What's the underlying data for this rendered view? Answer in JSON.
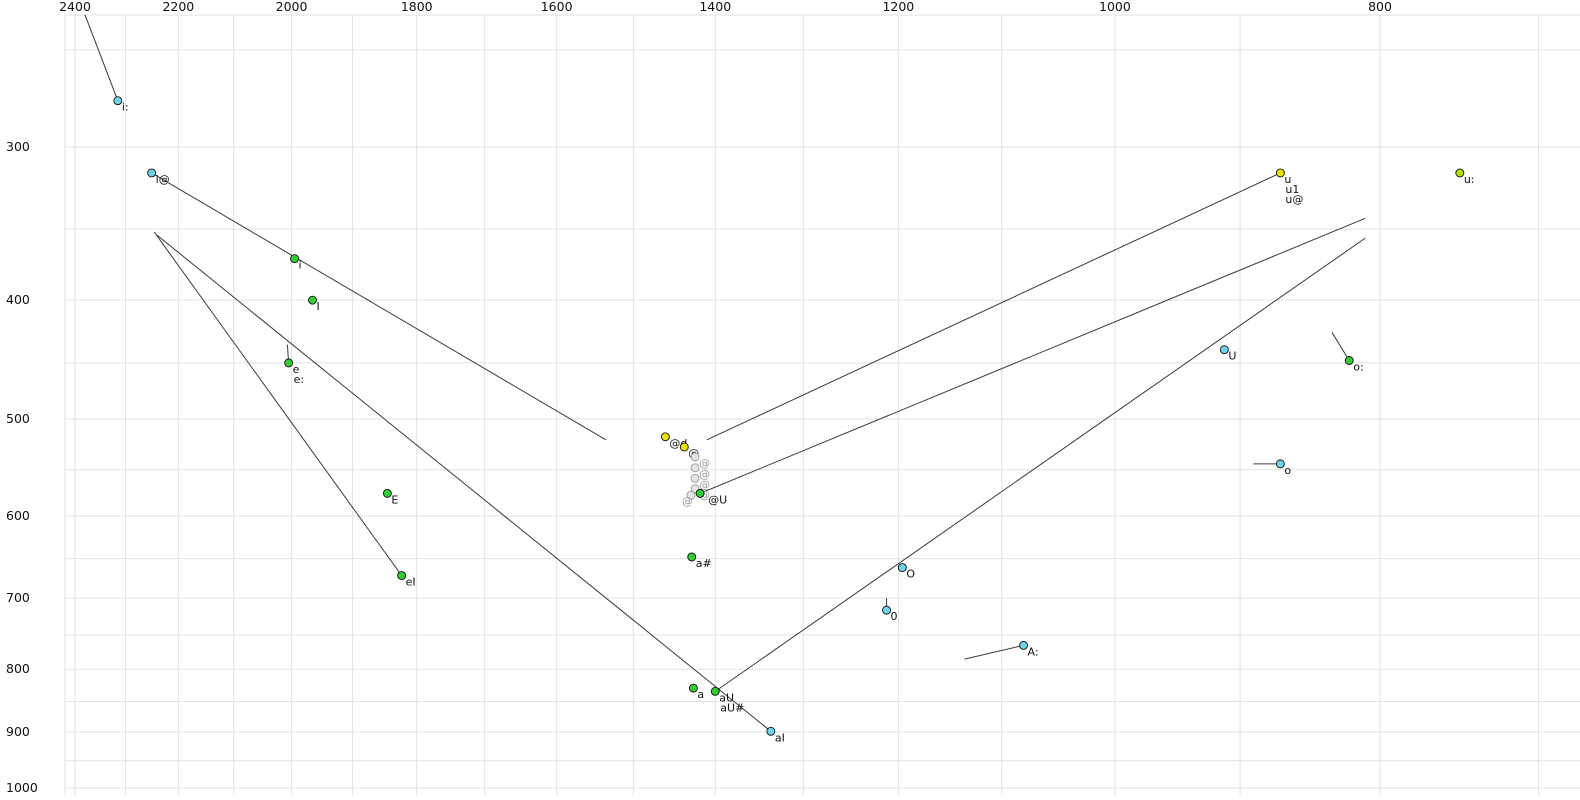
{
  "chart_data": {
    "type": "scatter",
    "title": "",
    "description": "Vowel formant plot: F2 (Hz) on reversed logarithmic x-axis (top labels), F1 (Hz) on downward logarithmic y-axis (left labels). Points are vowel tokens with phonetic labels; lines show diphthong glide trajectories.",
    "x_axis": {
      "ticks": [
        2400,
        2200,
        2000,
        1800,
        1600,
        1400,
        1200,
        1000,
        800
      ],
      "grid_from": 2400,
      "grid_to": 700,
      "minor_step": 100,
      "scale": "log",
      "reversed": true,
      "position": "top"
    },
    "y_axis": {
      "ticks": [
        300,
        400,
        500,
        600,
        700,
        800,
        900,
        1000
      ],
      "grid_from": 250,
      "grid_to": 1000,
      "minor_step": 50,
      "scale": "log",
      "downward": true,
      "position": "left"
    },
    "colors": {
      "green": "#33cc33",
      "cyan": "#6fd4e8",
      "yellow": "#e8e400",
      "yellowgreen": "#b4dc00",
      "gray": "#e4e4e4",
      "gray_stroke": "#999999",
      "gray_text": "#999999",
      "line": "#3a3a3a",
      "grid": "#e2e2e2",
      "text": "#111111"
    },
    "points": [
      {
        "label": "i:",
        "f2": 2315,
        "f1": 275,
        "color": "cyan"
      },
      {
        "label": "i@",
        "f2": 2250,
        "f1": 315,
        "color": "cyan"
      },
      {
        "label": "i",
        "f2": 1995,
        "f1": 370,
        "color": "green"
      },
      {
        "label": "I",
        "f2": 1965,
        "f1": 400,
        "color": "green"
      },
      {
        "label": "e",
        "f2": 2005,
        "f1": 450,
        "color": "green",
        "extra_labels": [
          "e:"
        ]
      },
      {
        "label": "E",
        "f2": 1845,
        "f1": 575,
        "color": "green"
      },
      {
        "label": "eI",
        "f2": 1823,
        "f1": 671,
        "color": "green"
      },
      {
        "label": "@d",
        "f2": 1460,
        "f1": 517,
        "color": "yellow"
      },
      {
        "label": "@",
        "f2": 1437,
        "f1": 527,
        "color": "yellow"
      },
      {
        "label": "@",
        "f2": 1424,
        "f1": 537,
        "color": "gray"
      },
      {
        "label": "@",
        "f2": 1424,
        "f1": 548,
        "color": "gray"
      },
      {
        "label": "@",
        "f2": 1424,
        "f1": 559,
        "color": "gray"
      },
      {
        "label": "@",
        "f2": 1424,
        "f1": 570,
        "color": "gray"
      },
      {
        "label": "@",
        "f2": 1429,
        "f1": 577,
        "color": "gray",
        "label_dx": -9
      },
      {
        "label": "@U",
        "f2": 1418,
        "f1": 575,
        "color": "green",
        "label_dx": 8
      },
      {
        "label": "a#",
        "f2": 1428,
        "f1": 648,
        "color": "green"
      },
      {
        "label": "a",
        "f2": 1426,
        "f1": 829,
        "color": "green"
      },
      {
        "label": "aU",
        "f2": 1400,
        "f1": 834,
        "color": "green",
        "extra_labels": [
          "aU#"
        ]
      },
      {
        "label": "aI",
        "f2": 1336,
        "f1": 899,
        "color": "cyan"
      },
      {
        "label": "O",
        "f2": 1196,
        "f1": 661,
        "color": "cyan"
      },
      {
        "label": "0",
        "f2": 1212,
        "f1": 716,
        "color": "cyan"
      },
      {
        "label": "A:",
        "f2": 1080,
        "f1": 765,
        "color": "cyan"
      },
      {
        "label": "U",
        "f2": 912,
        "f1": 439,
        "color": "cyan"
      },
      {
        "label": "u",
        "f2": 870,
        "f1": 315,
        "color": "yellow",
        "extra_labels": [
          "u1",
          "u@"
        ]
      },
      {
        "label": "u:",
        "f2": 748,
        "f1": 315,
        "color": "yellowgreen"
      },
      {
        "label": "o:",
        "f2": 821,
        "f1": 448,
        "color": "green"
      },
      {
        "label": "o",
        "f2": 870,
        "f1": 544,
        "color": "cyan"
      }
    ],
    "lines": [
      {
        "name": "i-long-tail",
        "from": [
          2380,
          234
        ],
        "to": [
          2315,
          275
        ]
      },
      {
        "name": "i@-glide",
        "from": [
          2250,
          315
        ],
        "to": [
          1535,
          520
        ]
      },
      {
        "name": "eI-glide",
        "from": [
          1823,
          671
        ],
        "to": [
          2245,
          352
        ]
      },
      {
        "name": "aI-glide",
        "from": [
          1336,
          899
        ],
        "to": [
          2240,
          354
        ]
      },
      {
        "name": "aU-glide",
        "from": [
          1400,
          834
        ],
        "to": [
          810,
          356
        ]
      },
      {
        "name": "@U-glide",
        "from": [
          1418,
          575
        ],
        "to": [
          810,
          343
        ]
      },
      {
        "name": "u@-glide",
        "from": [
          870,
          315
        ],
        "to": [
          1410,
          520
        ]
      },
      {
        "name": "e-tail",
        "from": [
          2007,
          435
        ],
        "to": [
          2005,
          450
        ]
      },
      {
        "name": "o-long-tail",
        "from": [
          833,
          425
        ],
        "to": [
          821,
          448
        ]
      },
      {
        "name": "o-tail",
        "from": [
          890,
          544
        ],
        "to": [
          870,
          544
        ]
      },
      {
        "name": "0-tail",
        "from": [
          1212,
          700
        ],
        "to": [
          1212,
          716
        ]
      },
      {
        "name": "A-long-tail",
        "from": [
          1135,
          785
        ],
        "to": [
          1080,
          765
        ]
      }
    ]
  }
}
